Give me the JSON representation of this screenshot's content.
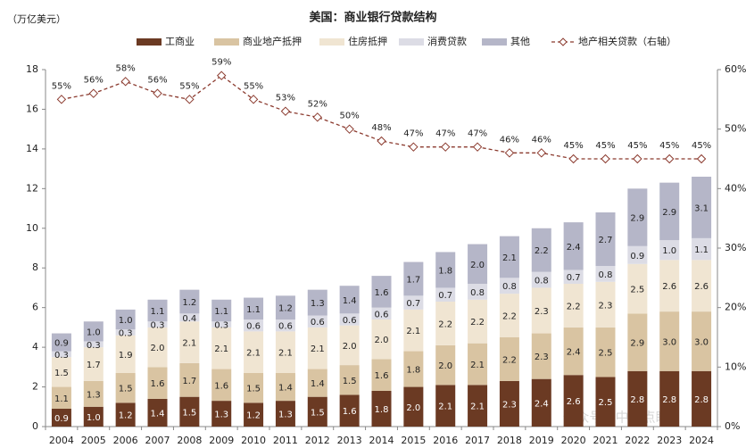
{
  "chart_data": {
    "type": "bar",
    "title": "美国：商业银行贷款结构",
    "y_label": "（万亿美元）",
    "watermark": "公众号 · 中金点睛",
    "categories": [
      "2004",
      "2005",
      "2006",
      "2007",
      "2008",
      "2009",
      "2010",
      "2011",
      "2012",
      "2013",
      "2014",
      "2015",
      "2016",
      "2017",
      "2018",
      "2019",
      "2020",
      "2021",
      "2022",
      "2023",
      "2024"
    ],
    "ylim": [
      0,
      18
    ],
    "yticks": [
      0,
      2,
      4,
      6,
      8,
      10,
      12,
      14,
      16,
      18
    ],
    "y2lim": [
      0,
      60
    ],
    "y2ticks": [
      {
        "value": 0,
        "label": "0%"
      },
      {
        "value": 10,
        "label": "10%"
      },
      {
        "value": 20,
        "label": "20%"
      },
      {
        "value": 30,
        "label": "30%"
      },
      {
        "value": 40,
        "label": "40%"
      },
      {
        "value": 50,
        "label": "50%"
      },
      {
        "value": 60,
        "label": "60%"
      }
    ],
    "stacked": true,
    "series": [
      {
        "name": "工商业",
        "color": "#6b3a23",
        "values": [
          0.9,
          1.0,
          1.2,
          1.4,
          1.5,
          1.3,
          1.2,
          1.3,
          1.5,
          1.6,
          1.8,
          2.0,
          2.1,
          2.1,
          2.3,
          2.4,
          2.6,
          2.5,
          2.8,
          2.8,
          2.8
        ],
        "value_labels": [
          "0.9",
          "1.0",
          "1.2",
          "1.4",
          "1.5",
          "1.3",
          "1.2",
          "1.3",
          "1.5",
          "1.6",
          "1.8",
          "2.0",
          "2.1",
          "2.1",
          "2.3",
          "2.4",
          "2.6",
          "2.5",
          "2.8",
          "2.8",
          "2.8"
        ]
      },
      {
        "name": "商业地产抵押",
        "color": "#d9c4a2",
        "values": [
          1.1,
          1.3,
          1.5,
          1.6,
          1.7,
          1.6,
          1.5,
          1.4,
          1.4,
          1.5,
          1.6,
          1.8,
          2.0,
          2.1,
          2.2,
          2.3,
          2.4,
          2.5,
          2.9,
          3.0,
          3.0
        ],
        "value_labels": [
          "1.1",
          "1.3",
          "1.5",
          "1.6",
          "1.7",
          "1.6",
          "1.5",
          "1.4",
          "1.4",
          "1.5",
          "1.6",
          "1.8",
          "2.0",
          "2.1",
          "2.2",
          "2.3",
          "2.4",
          "2.5",
          "2.9",
          "3.0",
          "3.0"
        ]
      },
      {
        "name": "住房抵押",
        "color": "#f0e5d2",
        "values": [
          1.5,
          1.7,
          1.9,
          2.0,
          2.1,
          2.1,
          2.1,
          2.1,
          2.1,
          2.0,
          2.0,
          2.1,
          2.2,
          2.2,
          2.2,
          2.3,
          2.2,
          2.3,
          2.5,
          2.6,
          2.6
        ],
        "value_labels": [
          "1.5",
          "1.7",
          "1.9",
          "2.0",
          "2.1",
          "2.1",
          "2.1",
          "2.1",
          "2.1",
          "2.0",
          "2.0",
          "2.1",
          "2.2",
          "2.2",
          "2.2",
          "2.3",
          "2.2",
          "2.3",
          "2.5",
          "2.6",
          "2.6"
        ]
      },
      {
        "name": "消费贷款",
        "color": "#dcdce5",
        "values": [
          0.3,
          0.3,
          0.3,
          0.3,
          0.4,
          0.3,
          0.6,
          0.6,
          0.6,
          0.6,
          0.6,
          0.7,
          0.7,
          0.8,
          0.8,
          0.8,
          0.7,
          0.8,
          0.9,
          1.0,
          1.1
        ],
        "value_labels": [
          "0.3",
          "0.3",
          "0.3",
          "0.3",
          "0.4",
          "0.3",
          "0.6",
          "0.6",
          "0.6",
          "0.6",
          "0.6",
          "0.7",
          "0.7",
          "0.8",
          "0.8",
          "0.8",
          "0.7",
          "0.8",
          "0.9",
          "1.0",
          "1.1"
        ]
      },
      {
        "name": "其他",
        "color": "#b5b6c8",
        "values": [
          0.9,
          1.0,
          1.0,
          1.1,
          1.2,
          1.1,
          1.1,
          1.2,
          1.3,
          1.4,
          1.6,
          1.7,
          1.8,
          2.0,
          2.1,
          2.2,
          2.4,
          2.7,
          2.9,
          2.9,
          3.1
        ],
        "value_labels": [
          "0.9",
          "1.0",
          "1.0",
          "1.1",
          "1.2",
          "1.1",
          "1.1",
          "1.2",
          "1.3",
          "1.4",
          "1.6",
          "1.7",
          "1.8",
          "2.0",
          "2.1",
          "2.2",
          "2.4",
          "2.7",
          "2.9",
          "2.9",
          "3.1"
        ]
      },
      {
        "name": "地产相关贷款（右轴）",
        "color": "#8b3a2e",
        "type": "line",
        "axis": "y2",
        "values": [
          55,
          56,
          58,
          56,
          55,
          59,
          55,
          53,
          52,
          50,
          48,
          47,
          47,
          47,
          46,
          46,
          45,
          45,
          45,
          45,
          45
        ],
        "value_labels": [
          "55%",
          "56%",
          "58%",
          "56%",
          "55%",
          "59%",
          "55%",
          "53%",
          "52%",
          "50%",
          "48%",
          "47%",
          "47%",
          "47%",
          "46%",
          "46%",
          "45%",
          "45%",
          "45%",
          "45%",
          "45%"
        ]
      }
    ]
  }
}
